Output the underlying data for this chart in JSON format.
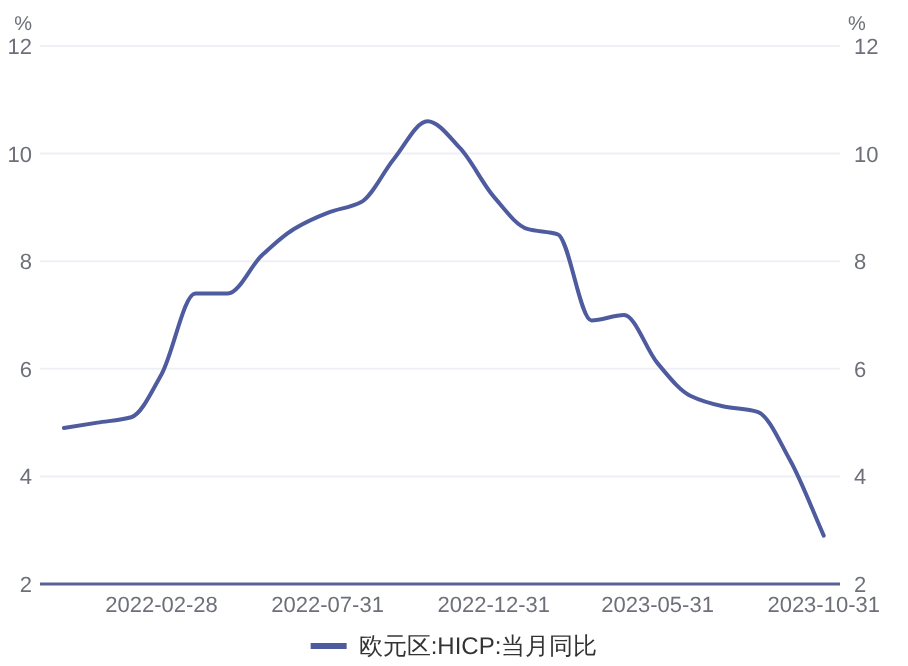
{
  "chart_data": {
    "type": "line",
    "ylabel": "%",
    "y2label": "%",
    "x": [
      "2021-11-30",
      "2021-12-31",
      "2022-01-31",
      "2022-02-28",
      "2022-03-31",
      "2022-04-30",
      "2022-05-31",
      "2022-06-30",
      "2022-07-31",
      "2022-08-31",
      "2022-09-30",
      "2022-10-31",
      "2022-11-30",
      "2022-12-31",
      "2023-01-31",
      "2023-02-28",
      "2023-03-31",
      "2023-04-30",
      "2023-05-31",
      "2023-06-30",
      "2023-07-31",
      "2023-08-31",
      "2023-09-30",
      "2023-10-31"
    ],
    "series": [
      {
        "name": "欧元区:HICP:当月同比",
        "color": "#4e5b9e",
        "values": [
          4.9,
          5.0,
          5.1,
          5.9,
          7.4,
          7.4,
          8.1,
          8.6,
          8.9,
          9.1,
          9.9,
          10.6,
          10.1,
          9.2,
          8.6,
          8.5,
          6.9,
          7.0,
          6.1,
          5.5,
          5.3,
          5.2,
          4.3,
          2.9
        ]
      }
    ],
    "xlim": [
      "2021-11-08",
      "2023-11-15"
    ],
    "xticks": [
      "2022-02-28",
      "2022-07-31",
      "2022-12-31",
      "2023-05-31",
      "2023-10-31"
    ],
    "ylim": [
      2,
      12
    ],
    "yticks": [
      2,
      4,
      6,
      8,
      10,
      12
    ],
    "y2lim": [
      2,
      12
    ],
    "y2ticks": [
      2,
      4,
      6,
      8,
      10,
      12
    ],
    "grid": "y",
    "legend": "bottom",
    "marker": "none",
    "line_style": "solid"
  }
}
